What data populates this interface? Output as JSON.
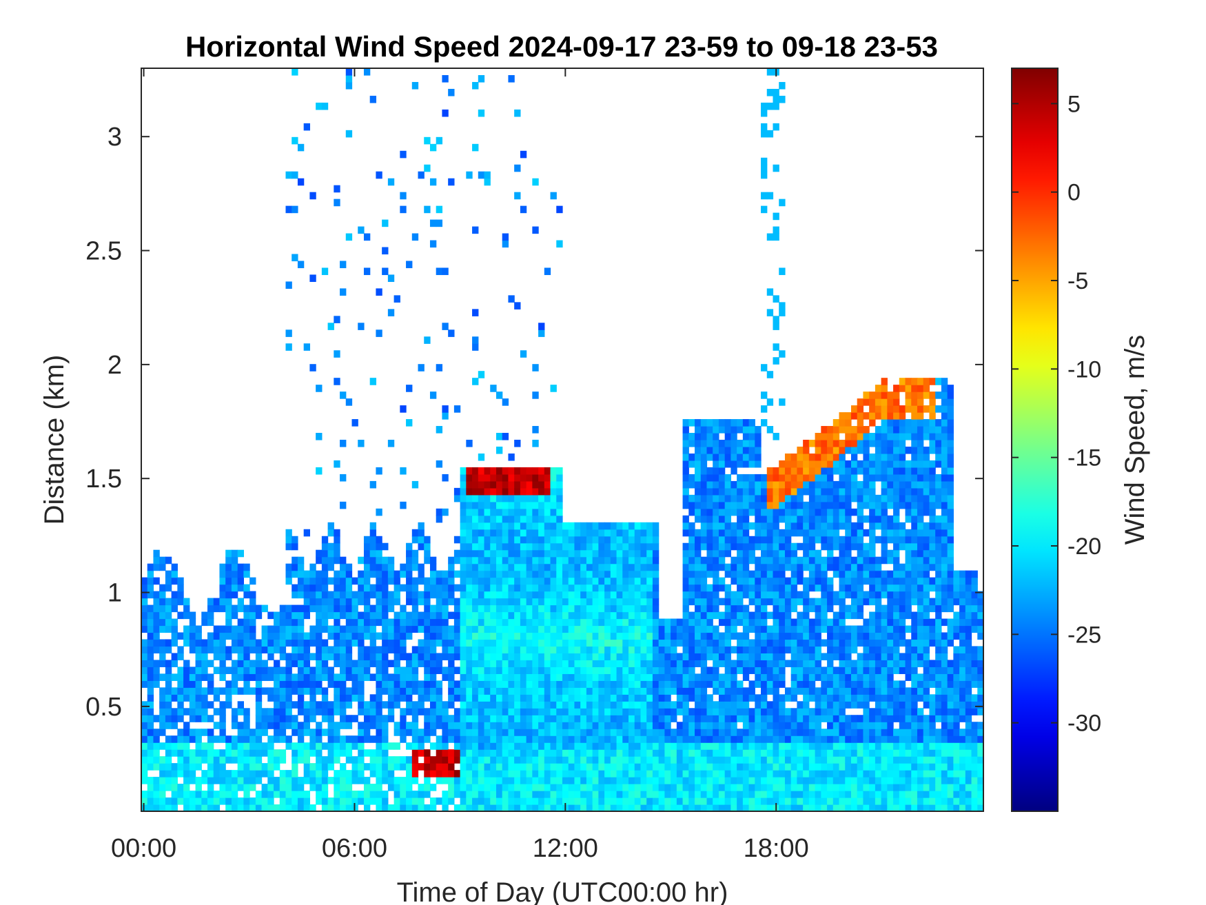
{
  "chart_data": {
    "type": "heatmap",
    "title": "Horizontal Wind Speed 2024-09-17 23-59 to 09-18 23-53",
    "xlabel": "Time of Day (UTC00:00 hr)",
    "ylabel": "Distance (km)",
    "x_ticks": [
      "00:00",
      "06:00",
      "12:00",
      "18:00"
    ],
    "x_tick_hours": [
      0,
      6,
      12,
      18
    ],
    "xlim_hours": [
      -0.07,
      23.9
    ],
    "y_ticks": [
      "0.5",
      "1",
      "1.5",
      "2",
      "2.5",
      "3"
    ],
    "y_tick_values": [
      0.5,
      1,
      1.5,
      2,
      2.5,
      3
    ],
    "ylim_km": [
      0.04,
      3.3
    ],
    "colorbar": {
      "label": "Wind Speed, m/s",
      "ticks": [
        "5",
        "0",
        "-5",
        "-10",
        "-15",
        "-20",
        "-25",
        "-30"
      ],
      "tick_values": [
        5,
        0,
        -5,
        -10,
        -15,
        -20,
        -25,
        -30
      ],
      "range": [
        -35,
        7
      ],
      "colormap": "jet"
    },
    "grid": false,
    "background_color": "#ffffff",
    "regions": [
      {
        "name": "near-surface layer",
        "t": [
          0,
          24
        ],
        "z": [
          0.04,
          0.35
        ],
        "speed": -21
      },
      {
        "name": "early boundary layer",
        "t": [
          0,
          9
        ],
        "z": [
          0.04,
          1.3
        ],
        "speed": -24
      },
      {
        "name": "morning-afternoon mixed layer",
        "t": [
          9,
          14.5
        ],
        "z": [
          0.3,
          1.5
        ],
        "speed": -20
      },
      {
        "name": "mixed layer top (strong shear)",
        "t": [
          9.2,
          11.5
        ],
        "z": [
          1.42,
          1.58
        ],
        "speed": 5
      },
      {
        "name": "surface hotspot",
        "t": [
          7.5,
          9
        ],
        "z": [
          0.2,
          0.32
        ],
        "speed": 4
      },
      {
        "name": "evening layer",
        "t": [
          14.8,
          23.9
        ],
        "z": [
          0.04,
          1.6
        ],
        "speed": -25
      },
      {
        "name": "elevated shear layer",
        "t": [
          17.8,
          22.5
        ],
        "z": [
          1.2,
          2.0
        ],
        "speed": -3
      },
      {
        "name": "upper cloud streaks",
        "t": [
          4,
          12
        ],
        "z": [
          1.5,
          3.3
        ],
        "speed": -24
      }
    ]
  }
}
